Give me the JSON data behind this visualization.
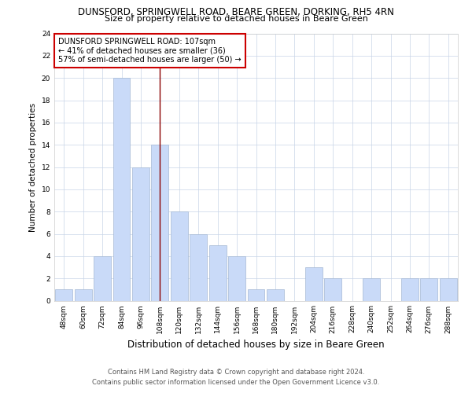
{
  "title": "DUNSFORD, SPRINGWELL ROAD, BEARE GREEN, DORKING, RH5 4RN",
  "subtitle": "Size of property relative to detached houses in Beare Green",
  "xlabel": "Distribution of detached houses by size in Beare Green",
  "ylabel": "Number of detached properties",
  "bins": [
    "48sqm",
    "60sqm",
    "72sqm",
    "84sqm",
    "96sqm",
    "108sqm",
    "120sqm",
    "132sqm",
    "144sqm",
    "156sqm",
    "168sqm",
    "180sqm",
    "192sqm",
    "204sqm",
    "216sqm",
    "228sqm",
    "240sqm",
    "252sqm",
    "264sqm",
    "276sqm",
    "288sqm"
  ],
  "values": [
    1,
    1,
    4,
    20,
    12,
    14,
    8,
    6,
    5,
    4,
    1,
    1,
    0,
    3,
    2,
    0,
    2,
    0,
    2,
    2,
    2
  ],
  "bar_color": "#c9daf8",
  "bar_edge_color": "#a4b8d4",
  "vline_x_index": 5,
  "vline_color": "#8b0000",
  "annotation_title": "DUNSFORD SPRINGWELL ROAD: 107sqm",
  "annotation_line1": "← 41% of detached houses are smaller (36)",
  "annotation_line2": "57% of semi-detached houses are larger (50) →",
  "annotation_box_color": "#ffffff",
  "annotation_border_color": "#cc0000",
  "ylim": [
    0,
    24
  ],
  "yticks": [
    0,
    2,
    4,
    6,
    8,
    10,
    12,
    14,
    16,
    18,
    20,
    22,
    24
  ],
  "grid_color": "#c8d4e8",
  "footnote1": "Contains HM Land Registry data © Crown copyright and database right 2024.",
  "footnote2": "Contains public sector information licensed under the Open Government Licence v3.0.",
  "bg_color": "#ffffff",
  "title_fontsize": 8.5,
  "subtitle_fontsize": 8,
  "xlabel_fontsize": 8.5,
  "ylabel_fontsize": 7.5,
  "tick_fontsize": 6.5,
  "annotation_fontsize": 7,
  "footnote_fontsize": 6
}
